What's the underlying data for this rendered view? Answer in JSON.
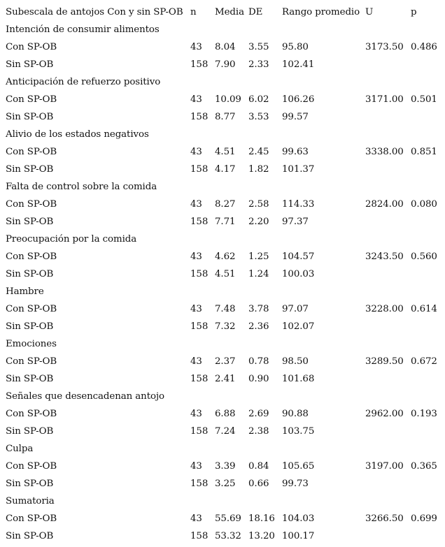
{
  "header": {
    "subscale": "Subescala de antojos Con y sin SP-OB",
    "n": "n",
    "media": "Media",
    "de": "DE",
    "rango": "Rango promedio",
    "u": "U",
    "p": "p"
  },
  "groups": [
    {
      "title": "Intención de consumir alimentos",
      "rows": [
        {
          "label": "Con SP-OB",
          "n": "43",
          "media": "8.04",
          "de": "3.55",
          "rango": "95.80",
          "u": "3173.50",
          "p": "0.486"
        },
        {
          "label": "Sin SP-OB",
          "n": "158",
          "media": "7.90",
          "de": "2.33",
          "rango": "102.41",
          "u": "",
          "p": ""
        }
      ]
    },
    {
      "title": "Anticipación de refuerzo positivo",
      "rows": [
        {
          "label": "Con SP-OB",
          "n": "43",
          "media": "10.09",
          "de": "6.02",
          "rango": "106.26",
          "u": "3171.00",
          "p": "0.501"
        },
        {
          "label": "Sin SP-OB",
          "n": "158",
          "media": "8.77",
          "de": "3.53",
          "rango": "99.57",
          "u": "",
          "p": ""
        }
      ]
    },
    {
      "title": "Alivio de los estados negativos",
      "rows": [
        {
          "label": "Con SP-OB",
          "n": "43",
          "media": "4.51",
          "de": "2.45",
          "rango": "99.63",
          "u": "3338.00",
          "p": "0.851"
        },
        {
          "label": "Sin SP-OB",
          "n": "158",
          "media": "4.17",
          "de": "1.82",
          "rango": "101.37",
          "u": "",
          "p": ""
        }
      ]
    },
    {
      "title": "Falta de control sobre la comida",
      "rows": [
        {
          "label": "Con SP-OB",
          "n": "43",
          "media": "8.27",
          "de": "2.58",
          "rango": "114.33",
          "u": "2824.00",
          "p": "0.080"
        },
        {
          "label": "Sin SP-OB",
          "n": "158",
          "media": "7.71",
          "de": "2.20",
          "rango": "97.37",
          "u": "",
          "p": ""
        }
      ]
    },
    {
      "title": "Preocupación por la comida",
      "rows": [
        {
          "label": "Con SP-OB",
          "n": "43",
          "media": "4.62",
          "de": "1.25",
          "rango": "104.57",
          "u": "3243.50",
          "p": "0.560"
        },
        {
          "label": "Sin SP-OB",
          "n": "158",
          "media": "4.51",
          "de": "1.24",
          "rango": "100.03",
          "u": "",
          "p": ""
        }
      ]
    },
    {
      "title": "Hambre",
      "rows": [
        {
          "label": "Con SP-OB",
          "n": "43",
          "media": "7.48",
          "de": "3.78",
          "rango": "97.07",
          "u": "3228.00",
          "p": "0.614"
        },
        {
          "label": "Sin SP-OB",
          "n": "158",
          "media": "7.32",
          "de": "2.36",
          "rango": "102.07",
          "u": "",
          "p": ""
        }
      ]
    },
    {
      "title": "Emociones",
      "rows": [
        {
          "label": "Con SP-OB",
          "n": "43",
          "media": "2.37",
          "de": "0.78",
          "rango": "98.50",
          "u": "3289.50",
          "p": "0.672"
        },
        {
          "label": "Sin SP-OB",
          "n": "158",
          "media": "2.41",
          "de": "0.90",
          "rango": "101.68",
          "u": "",
          "p": ""
        }
      ]
    },
    {
      "title": "Señales que desencadenan antojo",
      "rows": [
        {
          "label": "Con SP-OB",
          "n": "43",
          "media": "6.88",
          "de": "2.69",
          "rango": "90.88",
          "u": "2962.00",
          "p": "0.193"
        },
        {
          "label": "Sin SP-OB",
          "n": "158",
          "media": "7.24",
          "de": "2.38",
          "rango": "103.75",
          "u": "",
          "p": ""
        }
      ]
    },
    {
      "title": "Culpa",
      "rows": [
        {
          "label": "Con SP-OB",
          "n": "43",
          "media": "3.39",
          "de": "0.84",
          "rango": "105.65",
          "u": "3197.00",
          "p": "0.365"
        },
        {
          "label": "Sin SP-OB",
          "n": "158",
          "media": "3.25",
          "de": "0.66",
          "rango": "99.73",
          "u": "",
          "p": ""
        }
      ]
    },
    {
      "title": "Sumatoria",
      "rows": [
        {
          "label": "Con SP-OB",
          "n": "43",
          "media": "55.69",
          "de": "18.16",
          "rango": "104.03",
          "u": "3266.50",
          "p": "0.699"
        },
        {
          "label": "Sin SP-OB",
          "n": "158",
          "media": "53.32",
          "de": "13.20",
          "rango": "100.17",
          "u": "",
          "p": ""
        }
      ]
    }
  ]
}
